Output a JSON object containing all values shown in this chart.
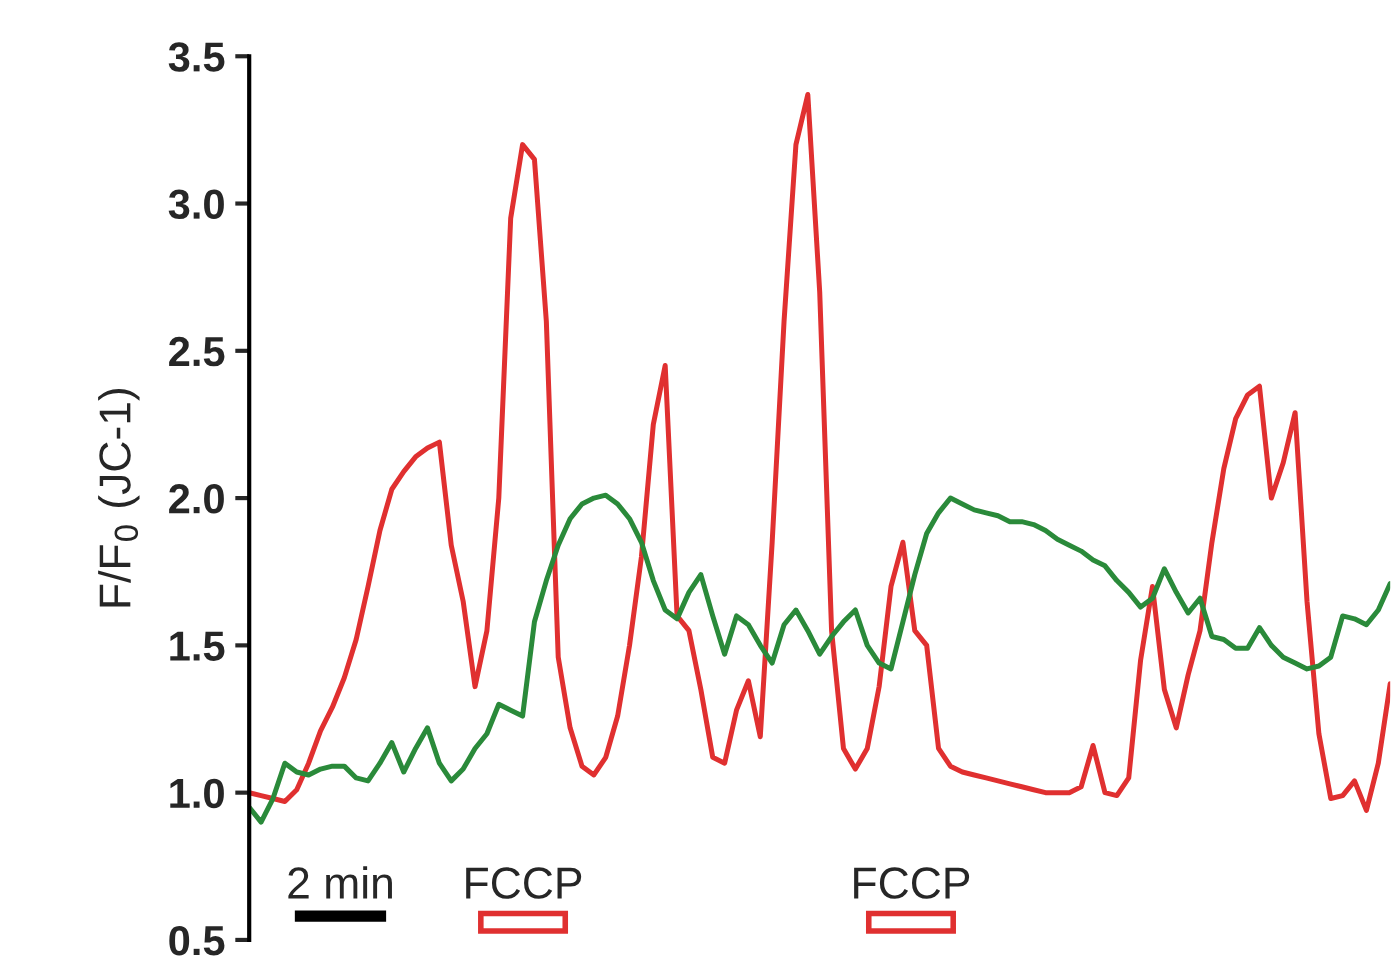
{
  "chart_data": {
    "type": "line",
    "ylabel": "F/F$_{0}$ (JC-1)",
    "categories": [
      null,
      null,
      null,
      null,
      null,
      null,
      null,
      null,
      null,
      null,
      null,
      null,
      null,
      null,
      null,
      null,
      null,
      null,
      null,
      null,
      null,
      null,
      null,
      null,
      null,
      null,
      null,
      null,
      null,
      null,
      null,
      null,
      null,
      null,
      null,
      null,
      null,
      null,
      null,
      null,
      null,
      null,
      null,
      null,
      null,
      null,
      null,
      null,
      null,
      null,
      null,
      null,
      null,
      null,
      null,
      null,
      null,
      null,
      null,
      null,
      null,
      null,
      null,
      null,
      null,
      null,
      null,
      null,
      null,
      null,
      null,
      null,
      null,
      null,
      null,
      null,
      null,
      null,
      null,
      null,
      null,
      null,
      null,
      null,
      null,
      null,
      null,
      null,
      null,
      null,
      null,
      null,
      null,
      null,
      null,
      null,
      null
    ],
    "ylim": [
      0.5,
      3.5
    ],
    "yticks": [
      {
        "value": 0.5,
        "label": "0.5"
      },
      {
        "value": 1,
        "label": "1.0"
      },
      {
        "value": 1.5,
        "label": "1.5"
      },
      {
        "value": 2,
        "label": "2.0"
      },
      {
        "value": 2.5,
        "label": "2.5"
      },
      {
        "value": 3,
        "label": "3.0"
      },
      {
        "value": 3.5,
        "label": "3.5"
      }
    ],
    "tick_labels": "y",
    "series": [
      {
        "color": "#e03030",
        "values": [
          1.0,
          0.99,
          0.98,
          0.97,
          1.01,
          1.1,
          1.21,
          1.29,
          1.39,
          1.52,
          1.7,
          1.89,
          2.03,
          2.09,
          2.14,
          2.17,
          2.19,
          1.84,
          1.65,
          1.36,
          1.55,
          2.0,
          2.95,
          3.2,
          3.15,
          2.6,
          1.46,
          1.22,
          1.09,
          1.06,
          1.12,
          1.26,
          1.5,
          1.8,
          2.25,
          2.45,
          1.6,
          1.55,
          1.35,
          1.12,
          1.1,
          1.28,
          1.38,
          1.19,
          1.85,
          2.6,
          3.2,
          3.37,
          2.7,
          1.55,
          1.15,
          1.08,
          1.15,
          1.36,
          1.7,
          1.85,
          1.55,
          1.5,
          1.15,
          1.09,
          1.07,
          1.06,
          1.05,
          1.04,
          1.03,
          1.02,
          1.01,
          1.0,
          1.0,
          1.0,
          1.02,
          1.16,
          1.0,
          0.99,
          1.05,
          1.45,
          1.7,
          1.35,
          1.22,
          1.4,
          1.55,
          1.85,
          2.1,
          2.27,
          2.35,
          2.38,
          2.0,
          2.12,
          2.29,
          1.65,
          1.2,
          0.98,
          0.99,
          1.04,
          0.94,
          1.1,
          1.37
        ]
      },
      {
        "color": "#2a8a3a",
        "values": [
          0.95,
          0.9,
          0.98,
          1.1,
          1.07,
          1.06,
          1.08,
          1.09,
          1.09,
          1.05,
          1.04,
          1.1,
          1.17,
          1.07,
          1.15,
          1.22,
          1.1,
          1.04,
          1.08,
          1.15,
          1.2,
          1.3,
          1.28,
          1.26,
          1.58,
          1.72,
          1.84,
          1.93,
          1.98,
          2.0,
          2.01,
          1.98,
          1.93,
          1.85,
          1.72,
          1.62,
          1.59,
          1.68,
          1.74,
          1.6,
          1.47,
          1.6,
          1.57,
          1.5,
          1.44,
          1.57,
          1.62,
          1.55,
          1.47,
          1.53,
          1.58,
          1.62,
          1.5,
          1.44,
          1.42,
          1.58,
          1.74,
          1.88,
          1.95,
          2.0,
          1.98,
          1.96,
          1.95,
          1.94,
          1.92,
          1.92,
          1.91,
          1.89,
          1.86,
          1.84,
          1.82,
          1.79,
          1.77,
          1.72,
          1.68,
          1.63,
          1.66,
          1.76,
          1.68,
          1.61,
          1.66,
          1.53,
          1.52,
          1.49,
          1.49,
          1.56,
          1.5,
          1.46,
          1.44,
          1.42,
          1.43,
          1.46,
          1.6,
          1.59,
          1.57,
          1.62,
          1.71
        ]
      }
    ],
    "annotations": [
      "2 min",
      "FCCP",
      "FCCP"
    ]
  }
}
